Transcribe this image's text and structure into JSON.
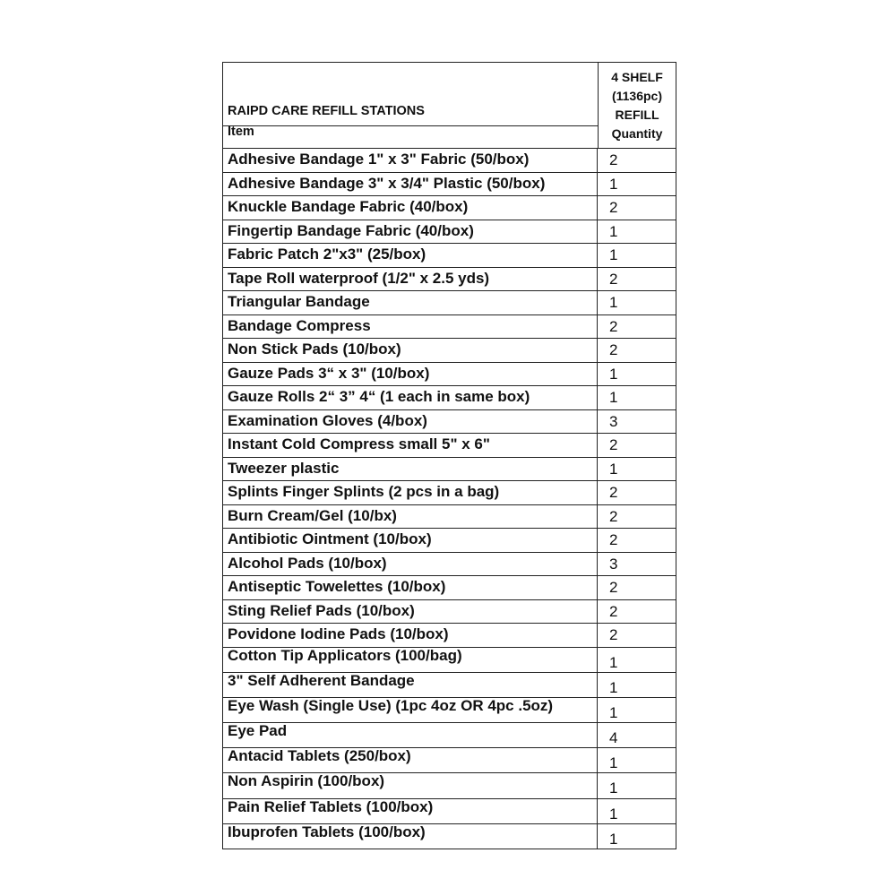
{
  "header": {
    "title": "RAIPD CARE REFILL STATIONS",
    "item_label": "Item",
    "qty_header_lines": [
      "4 SHELF",
      "(1136pc)",
      "REFILL",
      "Quantity"
    ]
  },
  "rows": [
    {
      "item": "Adhesive Bandage 1\" x 3\" Fabric (50/box)",
      "qty": "2"
    },
    {
      "item": "Adhesive Bandage 3\" x 3/4\" Plastic (50/box)",
      "qty": "1"
    },
    {
      "item": "Knuckle Bandage Fabric (40/box)",
      "qty": "2"
    },
    {
      "item": "Fingertip Bandage Fabric (40/box)",
      "qty": "1"
    },
    {
      "item": "Fabric Patch 2\"x3\" (25/box)",
      "qty": "1"
    },
    {
      "item": "Tape Roll waterproof (1/2\" x 2.5 yds)",
      "qty": "2"
    },
    {
      "item": "Triangular Bandage",
      "qty": "1"
    },
    {
      "item": "Bandage Compress",
      "qty": "2"
    },
    {
      "item": "Non Stick Pads (10/box)",
      "qty": "2"
    },
    {
      "item": "Gauze Pads 3“ x 3\" (10/box)",
      "qty": "1"
    },
    {
      "item": "Gauze Rolls 2“ 3” 4“ (1 each in same box)",
      "qty": "1"
    },
    {
      "item": "Examination Gloves (4/box)",
      "qty": "3"
    },
    {
      "item": "Instant Cold Compress small 5\" x 6\"",
      "qty": "2"
    },
    {
      "item": "Tweezer plastic",
      "qty": "1"
    },
    {
      "item": "Splints Finger Splints (2 pcs in a bag)",
      "qty": "2"
    },
    {
      "item": "Burn Cream/Gel (10/bx)",
      "qty": "2"
    },
    {
      "item": "Antibiotic Ointment (10/box)",
      "qty": "2"
    },
    {
      "item": "Alcohol Pads (10/box)",
      "qty": "3"
    },
    {
      "item": "Antiseptic Towelettes (10/box)",
      "qty": "2"
    },
    {
      "item": "Sting Relief Pads (10/box)",
      "qty": "2"
    },
    {
      "item": "Povidone Iodine Pads (10/box)",
      "qty": "2"
    },
    {
      "item": "Cotton Tip Applicators (100/bag)",
      "qty": "1"
    },
    {
      "item": "3\" Self Adherent Bandage",
      "qty": "1"
    },
    {
      "item": "Eye Wash (Single Use) (1pc 4oz OR 4pc .5oz)",
      "qty": "1"
    },
    {
      "item": "Eye Pad",
      "qty": "4"
    },
    {
      "item": "Antacid Tablets (250/box)",
      "qty": "1"
    },
    {
      "item": "Non Aspirin (100/box)",
      "qty": "1"
    },
    {
      "item": "Pain Relief Tablets (100/box)",
      "qty": "1"
    },
    {
      "item": "Ibuprofen Tablets (100/box)",
      "qty": "1"
    }
  ]
}
